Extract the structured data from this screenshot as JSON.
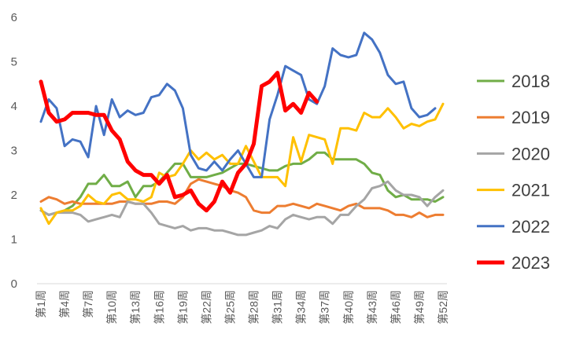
{
  "chart_data": {
    "type": "line",
    "title": "",
    "xlabel": "",
    "ylabel": "",
    "ylim": [
      0,
      6
    ],
    "yticks": [
      0,
      1,
      2,
      3,
      4,
      5,
      6
    ],
    "grid": false,
    "legend_position": "right",
    "categories": [
      "第1周",
      "第2周",
      "第3周",
      "第4周",
      "第5周",
      "第6周",
      "第7周",
      "第8周",
      "第9周",
      "第10周",
      "第11周",
      "第12周",
      "第13周",
      "第14周",
      "第15周",
      "第16周",
      "第17周",
      "第18周",
      "第19周",
      "第20周",
      "第21周",
      "第22周",
      "第23周",
      "第24周",
      "第25周",
      "第26周",
      "第27周",
      "第28周",
      "第29周",
      "第30周",
      "第31周",
      "第32周",
      "第33周",
      "第34周",
      "第35周",
      "第36周",
      "第37周",
      "第38周",
      "第39周",
      "第40周",
      "第41周",
      "第42周",
      "第43周",
      "第44周",
      "第45周",
      "第46周",
      "第47周",
      "第48周",
      "第49周",
      "第50周",
      "第51周",
      "第52周"
    ],
    "xtick_labels_shown": [
      "第1周",
      "第4周",
      "第7周",
      "第10周",
      "第13周",
      "第16周",
      "第19周",
      "第22周",
      "第25周",
      "第28周",
      "第31周",
      "第34周",
      "第37周",
      "第40周",
      "第43周",
      "第46周",
      "第49周",
      "第52周"
    ],
    "series": [
      {
        "name": "2018",
        "color": "#70ad47",
        "width": 3,
        "values": [
          1.65,
          1.55,
          1.6,
          1.65,
          1.75,
          1.95,
          2.25,
          2.25,
          2.45,
          2.2,
          2.2,
          2.3,
          1.95,
          2.2,
          2.2,
          2.3,
          2.5,
          2.7,
          2.7,
          2.4,
          2.4,
          2.4,
          2.45,
          2.5,
          2.6,
          2.7,
          2.7,
          2.65,
          2.6,
          2.55,
          2.55,
          2.65,
          2.7,
          2.7,
          2.8,
          2.95,
          2.95,
          2.8,
          2.8,
          2.8,
          2.8,
          2.7,
          2.5,
          2.45,
          2.1,
          1.95,
          2.0,
          1.9,
          1.9,
          1.9,
          1.85,
          1.95
        ]
      },
      {
        "name": "2019",
        "color": "#ed7d31",
        "width": 3,
        "values": [
          1.85,
          1.95,
          1.9,
          1.8,
          1.85,
          1.8,
          1.8,
          1.8,
          1.8,
          1.8,
          1.85,
          1.85,
          1.8,
          1.8,
          1.8,
          1.85,
          1.85,
          1.8,
          1.95,
          2.25,
          2.35,
          2.3,
          2.25,
          2.2,
          2.1,
          2.05,
          1.95,
          1.65,
          1.6,
          1.6,
          1.75,
          1.75,
          1.8,
          1.75,
          1.7,
          1.8,
          1.75,
          1.7,
          1.65,
          1.75,
          1.8,
          1.7,
          1.7,
          1.7,
          1.65,
          1.55,
          1.55,
          1.5,
          1.6,
          1.5,
          1.55,
          1.55
        ]
      },
      {
        "name": "2020",
        "color": "#a5a5a5",
        "width": 3,
        "values": [
          1.65,
          1.55,
          1.6,
          1.6,
          1.6,
          1.55,
          1.4,
          1.45,
          1.5,
          1.55,
          1.5,
          1.85,
          1.8,
          1.8,
          1.6,
          1.35,
          1.3,
          1.25,
          1.3,
          1.2,
          1.25,
          1.25,
          1.2,
          1.2,
          1.15,
          1.1,
          1.1,
          1.15,
          1.2,
          1.3,
          1.25,
          1.45,
          1.55,
          1.5,
          1.45,
          1.5,
          1.5,
          1.35,
          1.55,
          1.55,
          1.75,
          1.9,
          2.15,
          2.2,
          2.3,
          2.1,
          2.0,
          2.0,
          1.95,
          1.75,
          1.95,
          2.1
        ]
      },
      {
        "name": "2021",
        "color": "#ffc000",
        "width": 3,
        "values": [
          1.7,
          1.35,
          1.6,
          1.65,
          1.65,
          1.75,
          2.0,
          1.85,
          1.8,
          2.0,
          2.05,
          1.9,
          1.9,
          1.85,
          1.95,
          2.5,
          2.4,
          2.45,
          2.7,
          3.0,
          2.8,
          2.95,
          2.8,
          2.9,
          2.7,
          2.7,
          3.1,
          2.75,
          2.4,
          2.4,
          2.4,
          2.2,
          3.3,
          2.75,
          3.35,
          3.3,
          3.25,
          2.7,
          3.5,
          3.5,
          3.45,
          3.85,
          3.75,
          3.75,
          3.95,
          3.75,
          3.5,
          3.6,
          3.55,
          3.65,
          3.7,
          4.05
        ]
      },
      {
        "name": "2022",
        "color": "#4472c4",
        "width": 3,
        "values": [
          3.65,
          4.15,
          3.95,
          3.1,
          3.25,
          3.2,
          2.85,
          4.0,
          3.35,
          4.15,
          3.75,
          3.9,
          3.8,
          3.85,
          4.2,
          4.25,
          4.5,
          4.35,
          3.95,
          2.9,
          2.6,
          2.55,
          2.75,
          2.55,
          2.8,
          3.0,
          2.7,
          2.4,
          2.4,
          3.7,
          4.25,
          4.9,
          4.8,
          4.7,
          4.15,
          4.05,
          4.45,
          5.3,
          5.15,
          5.1,
          5.15,
          5.65,
          5.5,
          5.2,
          4.7,
          4.5,
          4.55,
          3.95,
          3.75,
          3.8,
          3.95,
          null
        ]
      },
      {
        "name": "2023",
        "color": "#ff0000",
        "width": 5,
        "values": [
          4.55,
          3.85,
          3.65,
          3.7,
          3.85,
          3.85,
          3.85,
          3.8,
          3.8,
          3.45,
          3.25,
          2.75,
          2.55,
          2.45,
          2.45,
          2.25,
          2.45,
          1.95,
          2.0,
          2.1,
          1.8,
          1.65,
          1.85,
          2.3,
          2.05,
          2.5,
          2.7,
          3.15,
          4.45,
          4.55,
          4.75,
          3.9,
          4.05,
          3.85,
          4.3,
          4.1,
          null,
          null,
          null,
          null,
          null,
          null,
          null,
          null,
          null,
          null,
          null,
          null,
          null,
          null,
          null,
          null
        ]
      }
    ]
  }
}
